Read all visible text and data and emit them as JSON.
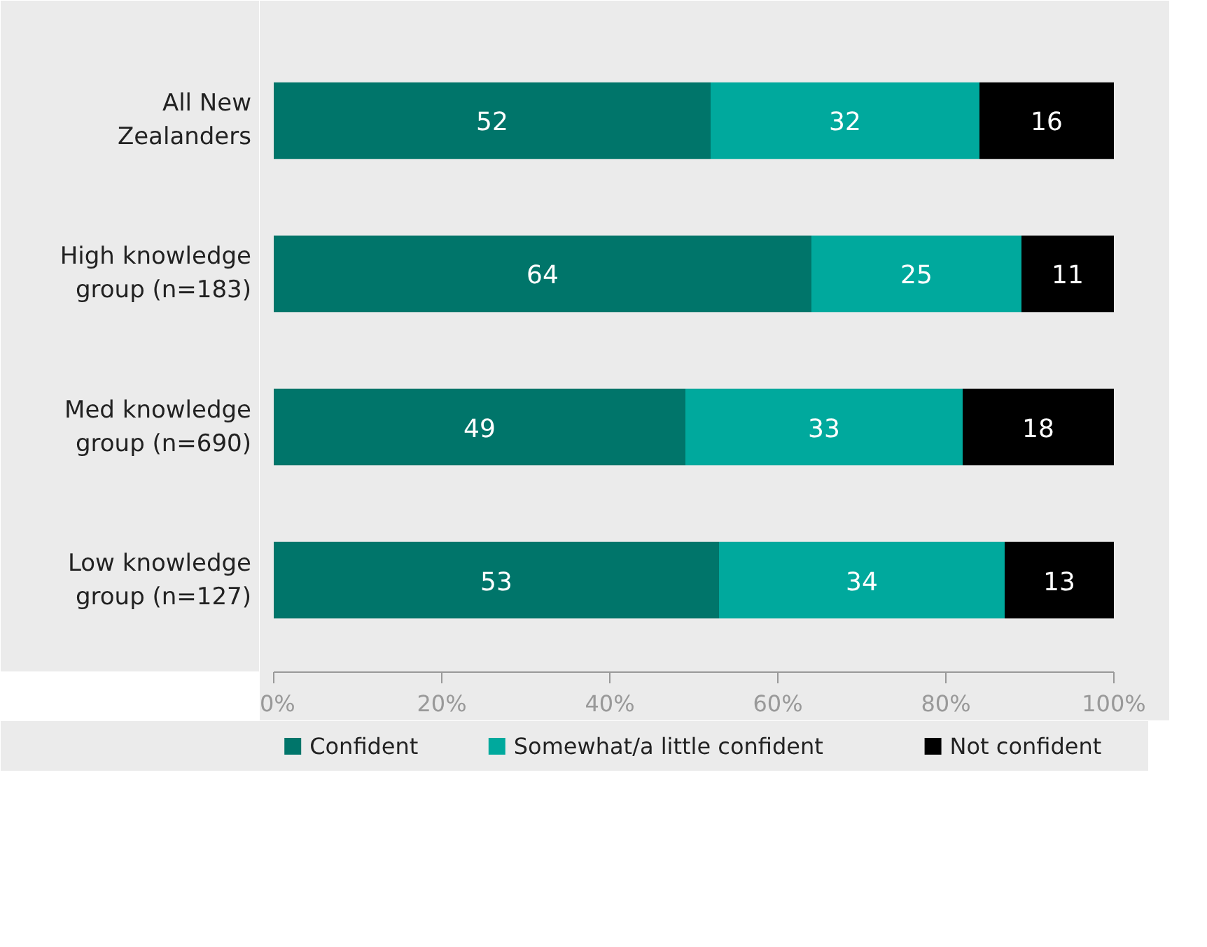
{
  "chart_data": {
    "type": "bar",
    "orientation": "horizontal",
    "stacked": true,
    "categories": [
      "All New Zealanders",
      "High knowledge group (n=183)",
      "Med knowledge group (n=690)",
      "Low knowledge group (n=127)"
    ],
    "series": [
      {
        "name": "Confident",
        "color": "#00756a",
        "values": [
          52,
          64,
          49,
          53
        ]
      },
      {
        "name": "Somewhat/a little confident",
        "color": "#00a99d",
        "values": [
          32,
          25,
          33,
          34
        ]
      },
      {
        "name": "Not confident",
        "color": "#000000",
        "values": [
          16,
          11,
          18,
          13
        ]
      }
    ],
    "xlim": [
      0,
      100
    ],
    "xticks": [
      {
        "value": 0,
        "label": "0%"
      },
      {
        "value": 20,
        "label": "20%"
      },
      {
        "value": 40,
        "label": "40%"
      },
      {
        "value": 60,
        "label": "60%"
      },
      {
        "value": 80,
        "label": "80%"
      },
      {
        "value": 100,
        "label": "100%"
      }
    ],
    "data_labels": true,
    "grid": false,
    "legend": "bottom"
  }
}
